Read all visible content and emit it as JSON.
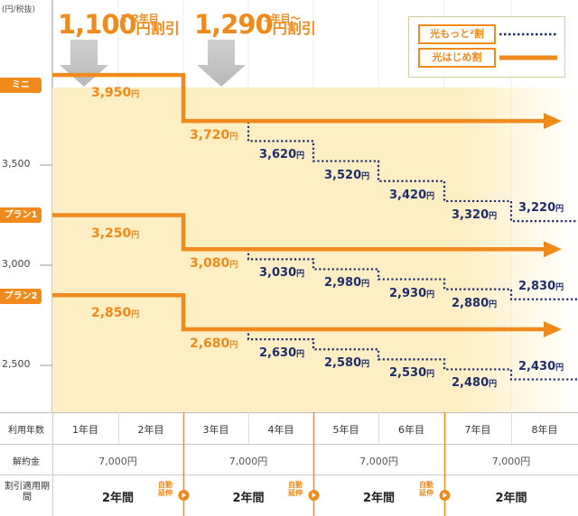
{
  "y_unit": "(円/税抜)",
  "discounts": [
    {
      "amount": "1,100",
      "yen": "円割引",
      "period": "1･2年目"
    },
    {
      "amount": "1,290",
      "yen": "円割引",
      "period": "3年目～"
    }
  ],
  "legend": [
    {
      "label": "光もっと²割",
      "style": "dotted",
      "color": "#1f2d6b"
    },
    {
      "label": "光はじめ割",
      "style": "solid",
      "color": "#f08a1c"
    }
  ],
  "colors": {
    "accent": "#f08a1c",
    "dotted": "#1f2d6b",
    "band": "#fdeec3",
    "text_orange": "#f08a1c"
  },
  "chart_data": {
    "type": "line",
    "x": [
      "1年目",
      "2年目",
      "3年目",
      "4年目",
      "5年目",
      "6年目",
      "7年目",
      "8年目"
    ],
    "yticks": [
      "2,500",
      "3,000",
      "3,500"
    ],
    "series": [
      {
        "name": "ミニ",
        "hajime": [
          3950,
          3950,
          3720,
          3720,
          3720,
          3720,
          3720,
          3720
        ],
        "motto": [
          3950,
          3950,
          3720,
          3620,
          3520,
          3420,
          3320,
          3220
        ],
        "labels": [
          "3,950",
          "3,720",
          "3,620",
          "3,520",
          "3,420",
          "3,320",
          "3,220"
        ]
      },
      {
        "name": "プラン1",
        "hajime": [
          3250,
          3250,
          3080,
          3080,
          3080,
          3080,
          3080,
          3080
        ],
        "motto": [
          3250,
          3250,
          3080,
          3030,
          2980,
          2930,
          2880,
          2830
        ],
        "labels": [
          "3,250",
          "3,080",
          "3,030",
          "2,980",
          "2,930",
          "2,880",
          "2,830"
        ]
      },
      {
        "name": "プラン2",
        "hajime": [
          2850,
          2850,
          2680,
          2680,
          2680,
          2680,
          2680,
          2680
        ],
        "motto": [
          2850,
          2850,
          2680,
          2630,
          2580,
          2530,
          2480,
          2430
        ],
        "labels": [
          "2,850",
          "2,680",
          "2,630",
          "2,580",
          "2,530",
          "2,480",
          "2,430"
        ]
      }
    ]
  },
  "table": {
    "row_labels": [
      "利用年数",
      "解約金",
      "割引適用期間"
    ],
    "years": [
      "1年目",
      "2年目",
      "3年目",
      "4年目",
      "5年目",
      "6年目",
      "7年目",
      "8年目"
    ],
    "fees": [
      "7,000円",
      "7,000円",
      "7,000円",
      "7,000円"
    ],
    "periods": [
      "2年間",
      "2年間",
      "2年間",
      "2年間"
    ],
    "auto_extend": "自動延伸"
  },
  "yen_unit": "円"
}
